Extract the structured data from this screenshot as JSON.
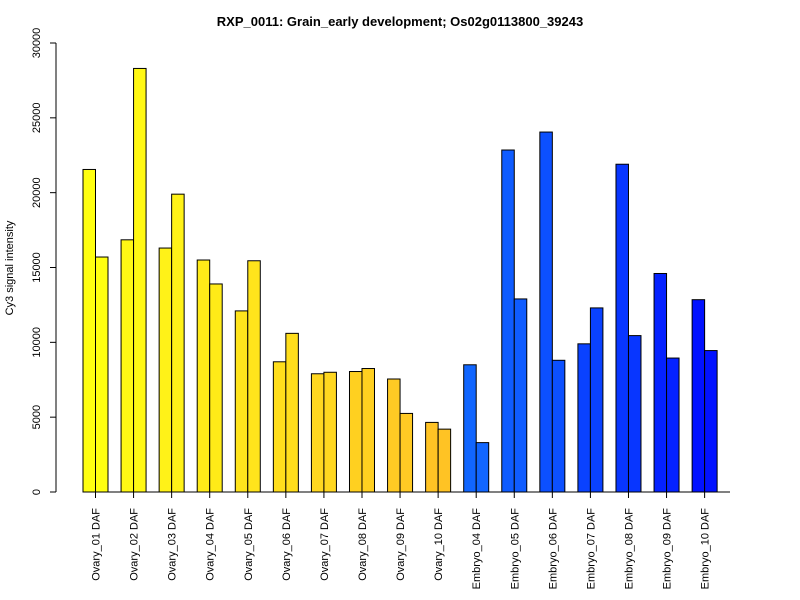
{
  "chart_data": {
    "type": "bar",
    "title": "RXP_0011: Grain_early development; Os02g0113800_39243",
    "xlabel": "",
    "ylabel": "Cy3 signal intensity",
    "ylim": [
      0,
      30000
    ],
    "yticks": [
      0,
      5000,
      10000,
      15000,
      20000,
      25000,
      30000
    ],
    "grid": false,
    "legend": "none",
    "categories": [
      "Ovary_01 DAF",
      "Ovary_02 DAF",
      "Ovary_03 DAF",
      "Ovary_04 DAF",
      "Ovary_05 DAF",
      "Ovary_06 DAF",
      "Ovary_07 DAF",
      "Ovary_08 DAF",
      "Ovary_09 DAF",
      "Ovary_10 DAF",
      "Embryo_04 DAF",
      "Embryo_05 DAF",
      "Embryo_06 DAF",
      "Embryo_07 DAF",
      "Embryo_08 DAF",
      "Embryo_09 DAF",
      "Embryo_10 DAF"
    ],
    "series": [
      {
        "values": [
          21550,
          16850,
          16300,
          15500,
          12100,
          8700,
          7900,
          8050,
          7550,
          4650,
          8500,
          22850,
          24050,
          9900,
          21900,
          14600,
          12850
        ]
      },
      {
        "values": [
          15700,
          28300,
          19900,
          13900,
          15450,
          10600,
          8000,
          8250,
          5250,
          4200,
          3300,
          12900,
          8800,
          12300,
          10450,
          8950,
          9450
        ]
      }
    ],
    "colors": [
      "#FFFF10",
      "#FFF814",
      "#FFF218",
      "#FFEB18",
      "#FFE41C",
      "#FFDE1C",
      "#FFD720",
      "#FFD020",
      "#FFCA24",
      "#FFC324",
      "#1166FF",
      "#0F5CFF",
      "#0C50FF",
      "#0A42FF",
      "#0836FF",
      "#0522FF",
      "#0212FF"
    ]
  }
}
